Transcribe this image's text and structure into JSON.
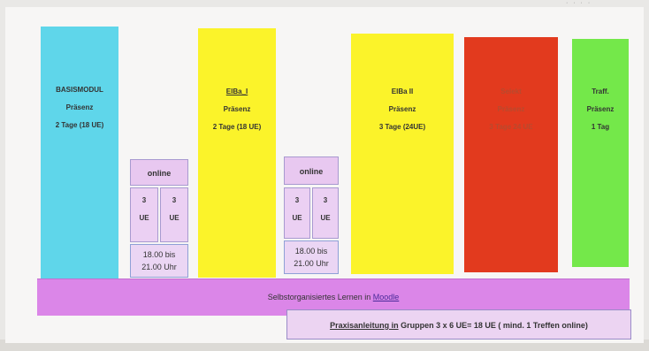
{
  "toolbar": {
    "icons": "· · · ·"
  },
  "columns": [
    {
      "line1": "BASISMODUL",
      "line2": "Präsenz",
      "line3": "2 Tage (18 UE)",
      "color": "#5fd6ea"
    },
    {
      "line1": "ElBa_I",
      "line2": "Präsenz",
      "line3": "2 Tage (18 UE)",
      "color": "#fbf32a"
    },
    {
      "line1": "ElBa II",
      "line2": "Präsenz",
      "line3": "3 Tage (24UE)",
      "color": "#fbf32a"
    },
    {
      "line1": "Selekt",
      "line2": "Präsenz",
      "line3": "3 Tage 24 UE",
      "color": "#e23a1e"
    },
    {
      "line1": "Traff.",
      "line2": "Präsenz",
      "line3": "1 Tag",
      "color": "#74e84a"
    }
  ],
  "online_blocks": [
    {
      "head": "online",
      "ue_left": "3\nUE",
      "ue_right": "3\nUE",
      "time": "18.00 bis\n21.00 Uhr"
    },
    {
      "head": "online",
      "ue_left": "3\nUE",
      "ue_right": "3\nUE",
      "time": "18.00 bis\n21.00 Uhr"
    }
  ],
  "selbst": {
    "text": "Selbstorganisiertes Lernen in ",
    "link": "Moodle"
  },
  "praxis": {
    "prefix": "Praxisanleitung  in",
    "rest": " Gruppen  3 x 6 UE= 18 UE  ( mind. 1 Treffen online)"
  }
}
